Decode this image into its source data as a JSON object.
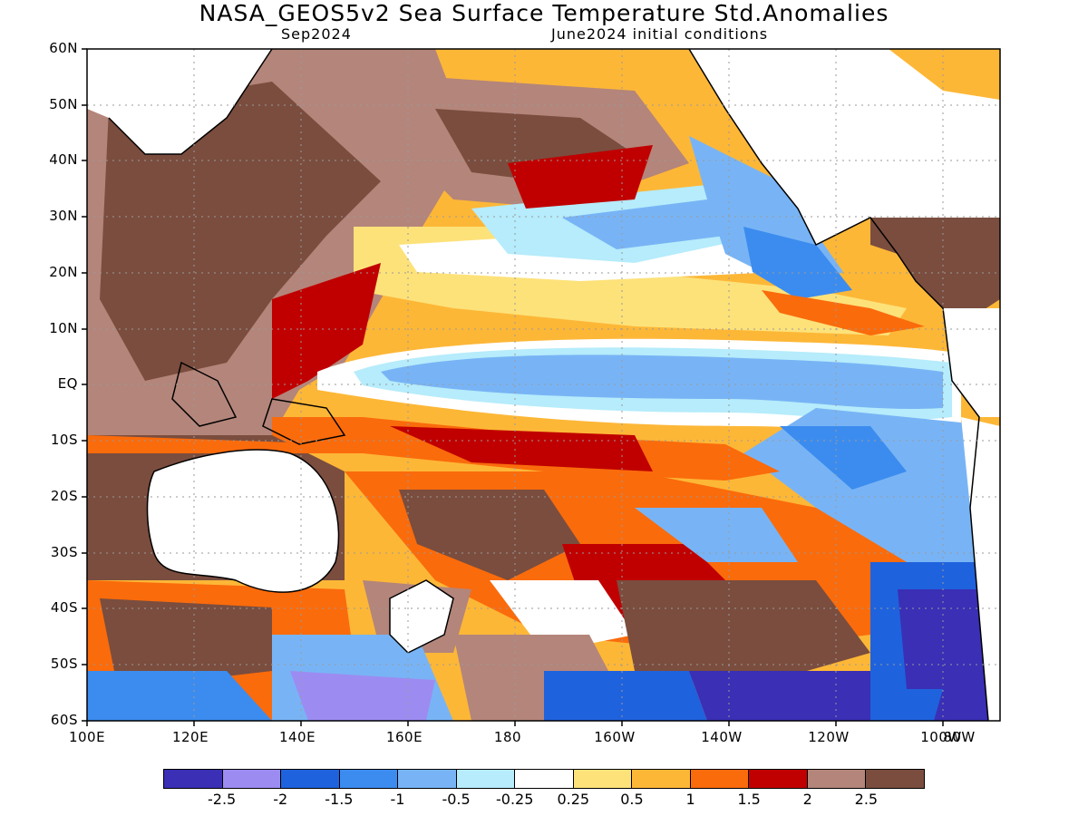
{
  "header": {
    "title": "NASA_GEOS5v2 Sea Surface Temperature Std.Anomalies",
    "valid_month": "Sep2024",
    "init": "June2024 initial conditions"
  },
  "axes": {
    "lat_labels": [
      "60N",
      "50N",
      "40N",
      "30N",
      "20N",
      "10N",
      "EQ",
      "10S",
      "20S",
      "30S",
      "40S",
      "50S",
      "60S"
    ],
    "lon_labels": [
      "100E",
      "120E",
      "140E",
      "160E",
      "180",
      "160W",
      "140W",
      "120W",
      "100W",
      "80W"
    ]
  },
  "legend": {
    "colors": [
      "#3a2fb5",
      "#9c8cf2",
      "#1f62dd",
      "#3c8cef",
      "#78b4f5",
      "#b6ecfb",
      "#ffffff",
      "#fde27a",
      "#fdb737",
      "#fa6b0c",
      "#c00000",
      "#b4857a",
      "#7a4d3e"
    ],
    "labels": [
      "-2.5",
      "-2",
      "-1.5",
      "-1",
      "-0.5",
      "-0.25",
      "0.25",
      "0.5",
      "1",
      "1.5",
      "2",
      "2.5"
    ]
  }
}
